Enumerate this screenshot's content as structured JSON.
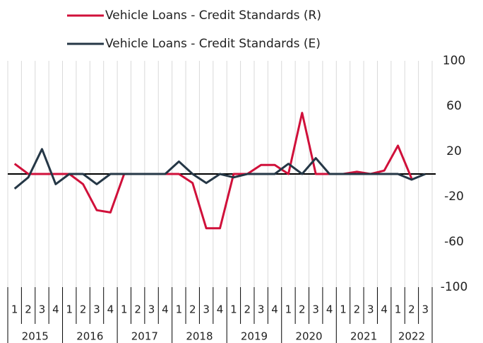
{
  "chart_data": {
    "type": "line",
    "categories": [
      "1",
      "2",
      "3",
      "4",
      "1",
      "2",
      "3",
      "4",
      "1",
      "2",
      "3",
      "4",
      "1",
      "2",
      "3",
      "4",
      "1",
      "2",
      "3",
      "4",
      "1",
      "2",
      "3",
      "4",
      "1",
      "2",
      "3",
      "4",
      "1",
      "2",
      "3"
    ],
    "category_groups": [
      "2015",
      "2016",
      "2017",
      "2018",
      "2019",
      "2020",
      "2021",
      "2022"
    ],
    "series": [
      {
        "name": "Vehicle Loans - Credit Standards (R)",
        "color": "#d0103a",
        "values": [
          9,
          0,
          0,
          0,
          0,
          -9,
          -32,
          -34,
          0,
          0,
          0,
          0,
          0,
          -8,
          -48,
          -48,
          0,
          0,
          8,
          8,
          0,
          54,
          0,
          0,
          0,
          2,
          0,
          3,
          25,
          -4,
          null
        ]
      },
      {
        "name": "Vehicle Loans - Credit Standards (E)",
        "color": "#253746",
        "values": [
          -13,
          -3,
          22,
          -9,
          0,
          0,
          -9,
          0,
          0,
          0,
          0,
          0,
          11,
          0,
          -8,
          0,
          -3,
          0,
          0,
          0,
          9,
          0,
          14,
          0,
          0,
          0,
          0,
          0,
          0,
          -5,
          0
        ]
      }
    ],
    "ylim": [
      -100,
      100
    ],
    "yticks": [
      100,
      60,
      20,
      -20,
      -60,
      -100
    ],
    "grid": true
  }
}
